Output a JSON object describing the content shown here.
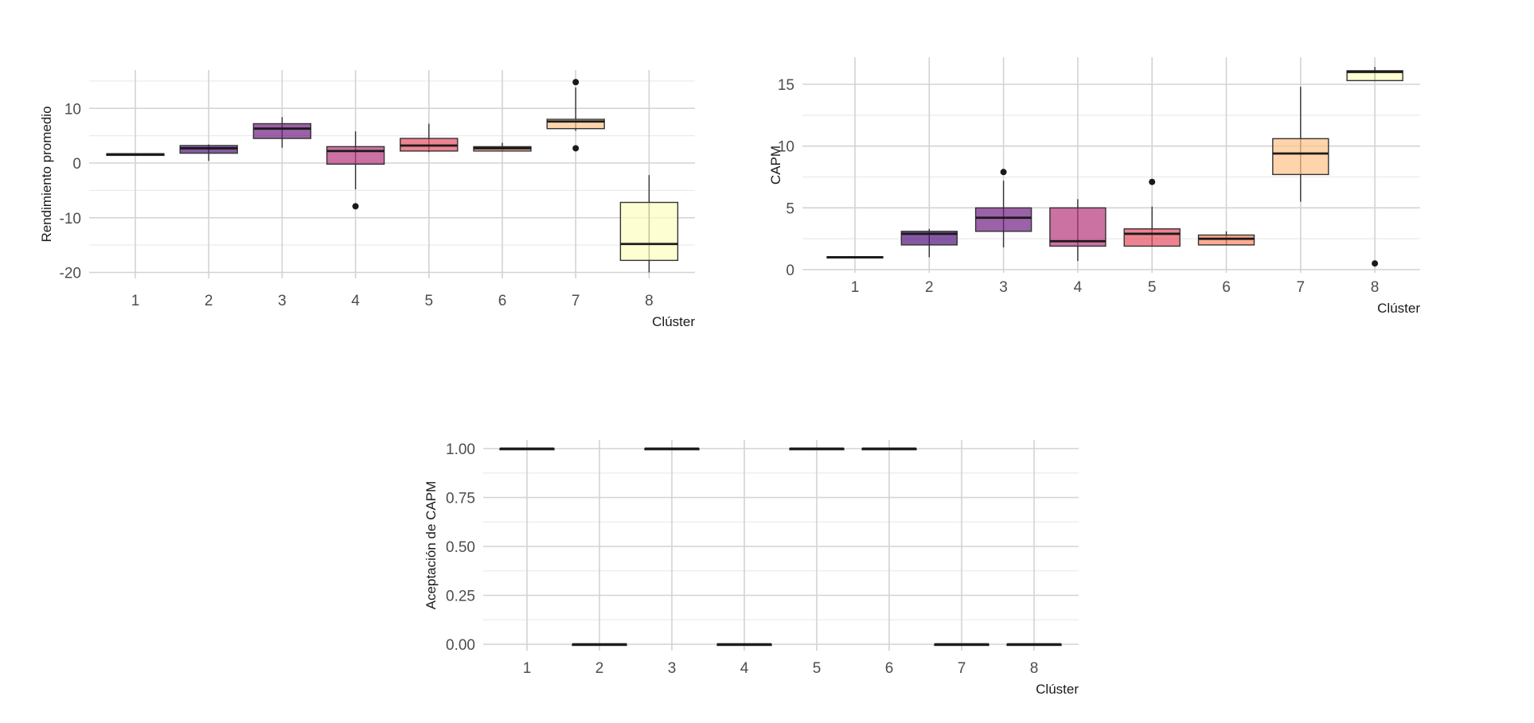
{
  "chart_data": [
    {
      "type": "box",
      "title": "",
      "xlabel": "Clúster",
      "ylabel": "Rendimiento promedio",
      "categories": [
        "1",
        "2",
        "3",
        "4",
        "5",
        "6",
        "7",
        "8"
      ],
      "ylim": [
        -21,
        16
      ],
      "yticks": [
        -20,
        -10,
        0,
        10
      ],
      "ytick_labels": [
        "-20",
        "-10",
        "0",
        "10"
      ],
      "minor_gridlines": [
        -15,
        -5,
        5,
        15
      ],
      "grid": true,
      "legend": "none",
      "colors": [
        "#2d1160",
        "#51127c",
        "#721f81",
        "#b5367a",
        "#e55064",
        "#fb8861",
        "#fec287",
        "#fcfdbf"
      ],
      "boxes": [
        {
          "category": "1",
          "q1": 1.4,
          "median": 1.6,
          "q3": 1.7,
          "whisker_low": 1.4,
          "whisker_high": 1.7,
          "outliers": []
        },
        {
          "category": "2",
          "q1": 1.8,
          "median": 2.7,
          "q3": 3.2,
          "whisker_low": 0.4,
          "whisker_high": 3.4,
          "outliers": []
        },
        {
          "category": "3",
          "q1": 4.5,
          "median": 6.3,
          "q3": 7.2,
          "whisker_low": 2.8,
          "whisker_high": 8.4,
          "outliers": []
        },
        {
          "category": "4",
          "q1": -0.2,
          "median": 2.2,
          "q3": 3.0,
          "whisker_low": -4.8,
          "whisker_high": 5.8,
          "outliers": [
            -7.9
          ]
        },
        {
          "category": "5",
          "q1": 2.2,
          "median": 3.2,
          "q3": 4.5,
          "whisker_low": 2.0,
          "whisker_high": 7.2,
          "outliers": []
        },
        {
          "category": "6",
          "q1": 2.2,
          "median": 2.7,
          "q3": 3.0,
          "whisker_low": 2.2,
          "whisker_high": 3.7,
          "outliers": []
        },
        {
          "category": "7",
          "q1": 6.3,
          "median": 7.6,
          "q3": 8.0,
          "whisker_low": 5.9,
          "whisker_high": 13.8,
          "outliers": [
            14.8,
            2.7
          ]
        },
        {
          "category": "8",
          "q1": -17.8,
          "median": -14.8,
          "q3": -7.2,
          "whisker_low": -20.0,
          "whisker_high": -2.2,
          "outliers": []
        }
      ]
    },
    {
      "type": "box",
      "title": "",
      "xlabel": "Clúster",
      "ylabel": "CAPM",
      "categories": [
        "1",
        "2",
        "3",
        "4",
        "5",
        "6",
        "7",
        "8"
      ],
      "ylim": [
        -0.5,
        17
      ],
      "yticks": [
        0,
        5,
        10,
        15
      ],
      "ytick_labels": [
        "0",
        "5",
        "10",
        "15"
      ],
      "minor_gridlines": [
        2.5,
        7.5,
        12.5
      ],
      "grid": true,
      "legend": "none",
      "colors": [
        "#2d1160",
        "#51127c",
        "#721f81",
        "#b5367a",
        "#e55064",
        "#fb8861",
        "#fec287",
        "#fcfdbf"
      ],
      "boxes": [
        {
          "category": "1",
          "q1": 0.95,
          "median": 1.0,
          "q3": 1.05,
          "whisker_low": 0.95,
          "whisker_high": 1.05,
          "outliers": []
        },
        {
          "category": "2",
          "q1": 2.0,
          "median": 2.9,
          "q3": 3.1,
          "whisker_low": 1.0,
          "whisker_high": 3.3,
          "outliers": []
        },
        {
          "category": "3",
          "q1": 3.1,
          "median": 4.2,
          "q3": 5.0,
          "whisker_low": 1.8,
          "whisker_high": 7.2,
          "outliers": [
            7.9
          ]
        },
        {
          "category": "4",
          "q1": 1.9,
          "median": 2.3,
          "q3": 5.0,
          "whisker_low": 0.7,
          "whisker_high": 5.7,
          "outliers": []
        },
        {
          "category": "5",
          "q1": 1.9,
          "median": 2.9,
          "q3": 3.3,
          "whisker_low": 1.9,
          "whisker_high": 5.1,
          "outliers": [
            7.1
          ]
        },
        {
          "category": "6",
          "q1": 2.0,
          "median": 2.5,
          "q3": 2.8,
          "whisker_low": 2.0,
          "whisker_high": 3.1,
          "outliers": []
        },
        {
          "category": "7",
          "q1": 7.7,
          "median": 9.4,
          "q3": 10.6,
          "whisker_low": 5.5,
          "whisker_high": 14.8,
          "outliers": []
        },
        {
          "category": "8",
          "q1": 15.3,
          "median": 16.0,
          "q3": 16.1,
          "whisker_low": 15.3,
          "whisker_high": 16.4,
          "outliers": [
            0.5
          ]
        }
      ]
    },
    {
      "type": "box",
      "title": "",
      "xlabel": "Clúster",
      "ylabel": "Aceptación de CAPM",
      "categories": [
        "1",
        "2",
        "3",
        "4",
        "5",
        "6",
        "7",
        "8"
      ],
      "ylim": [
        -0.04,
        1.04
      ],
      "yticks": [
        0,
        0.25,
        0.5,
        0.75,
        1.0
      ],
      "ytick_labels": [
        "0.00",
        "0.25",
        "0.50",
        "0.75",
        "1.00"
      ],
      "minor_gridlines": [
        0.125,
        0.375,
        0.625,
        0.875
      ],
      "grid": true,
      "legend": "none",
      "colors": [
        "#2d1160",
        "#51127c",
        "#721f81",
        "#b5367a",
        "#e55064",
        "#fb8861",
        "#fec287",
        "#fcfdbf"
      ],
      "boxes": [
        {
          "category": "1",
          "q1": 1,
          "median": 1,
          "q3": 1,
          "whisker_low": 1,
          "whisker_high": 1,
          "outliers": []
        },
        {
          "category": "2",
          "q1": 0,
          "median": 0,
          "q3": 0,
          "whisker_low": 0,
          "whisker_high": 0,
          "outliers": []
        },
        {
          "category": "3",
          "q1": 1,
          "median": 1,
          "q3": 1,
          "whisker_low": 1,
          "whisker_high": 1,
          "outliers": []
        },
        {
          "category": "4",
          "q1": 0,
          "median": 0,
          "q3": 0,
          "whisker_low": 0,
          "whisker_high": 0,
          "outliers": []
        },
        {
          "category": "5",
          "q1": 1,
          "median": 1,
          "q3": 1,
          "whisker_low": 1,
          "whisker_high": 1,
          "outliers": []
        },
        {
          "category": "6",
          "q1": 1,
          "median": 1,
          "q3": 1,
          "whisker_low": 1,
          "whisker_high": 1,
          "outliers": []
        },
        {
          "category": "7",
          "q1": 0,
          "median": 0,
          "q3": 0,
          "whisker_low": 0,
          "whisker_high": 0,
          "outliers": []
        },
        {
          "category": "8",
          "q1": 0,
          "median": 0,
          "q3": 0,
          "whisker_low": 0,
          "whisker_high": 0,
          "outliers": []
        }
      ]
    }
  ]
}
